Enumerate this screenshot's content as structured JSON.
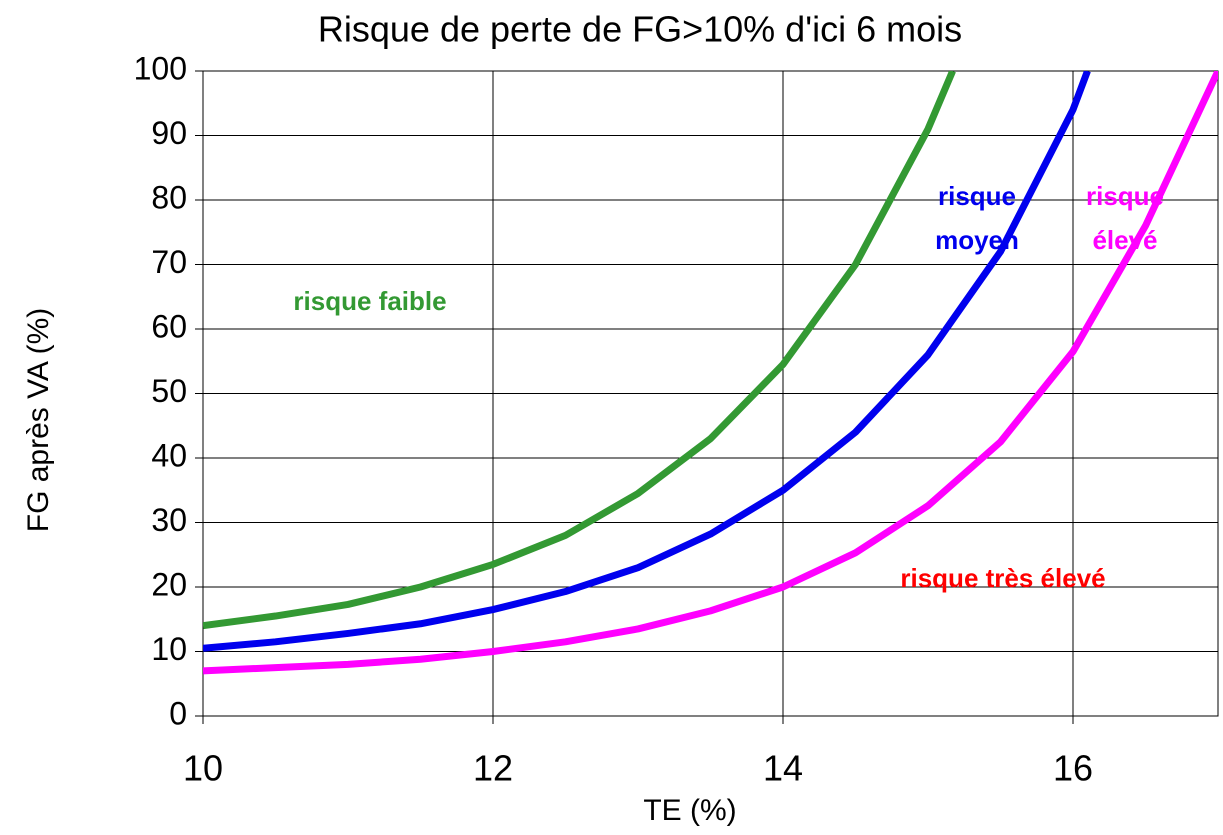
{
  "chart_data": {
    "type": "line",
    "title": "Risque de perte de FG>10% d'ici 6 mois",
    "x_label": "TE (%)",
    "y_label": "FG après VA (%)",
    "xlim": [
      10,
      17
    ],
    "ylim": [
      0,
      100
    ],
    "xticks": [
      10,
      12,
      14,
      16
    ],
    "yticks": [
      0,
      10,
      20,
      30,
      40,
      50,
      60,
      70,
      80,
      90,
      100
    ],
    "grid": true,
    "series": [
      {
        "color": "#339933",
        "x": [
          10,
          10.5,
          11,
          11.5,
          12,
          12.5,
          13,
          13.5,
          14,
          14.5,
          15,
          15.17
        ],
        "values": [
          14,
          15.5,
          17.3,
          20,
          23.5,
          28,
          34.5,
          43,
          54.5,
          70,
          91,
          100
        ]
      },
      {
        "color": "#0000ee",
        "x": [
          10,
          10.5,
          11,
          11.5,
          12,
          12.5,
          13,
          13.5,
          14,
          14.5,
          15,
          15.5,
          16,
          16.1
        ],
        "values": [
          10.5,
          11.5,
          12.8,
          14.3,
          16.5,
          19.3,
          23,
          28.2,
          35,
          44,
          56,
          72,
          94,
          100
        ]
      },
      {
        "color": "#ff00ff",
        "x": [
          10,
          10.5,
          11,
          11.5,
          12,
          12.5,
          13,
          13.5,
          14,
          14.5,
          15,
          15.5,
          16,
          16.5,
          17
        ],
        "values": [
          7,
          7.5,
          8,
          8.8,
          10,
          11.5,
          13.5,
          16.3,
          20,
          25.3,
          32.6,
          42.5,
          56.5,
          76,
          100
        ]
      }
    ],
    "annotations": [
      {
        "lines": [
          "risque faible"
        ],
        "color": "#339933"
      },
      {
        "lines": [
          "risque",
          "moyen"
        ],
        "color": "#0000ee"
      },
      {
        "lines": [
          "risque",
          "élevé"
        ],
        "color": "#ff00ff"
      },
      {
        "lines": [
          "risque très élevé"
        ],
        "color": "#ff0000"
      }
    ]
  }
}
